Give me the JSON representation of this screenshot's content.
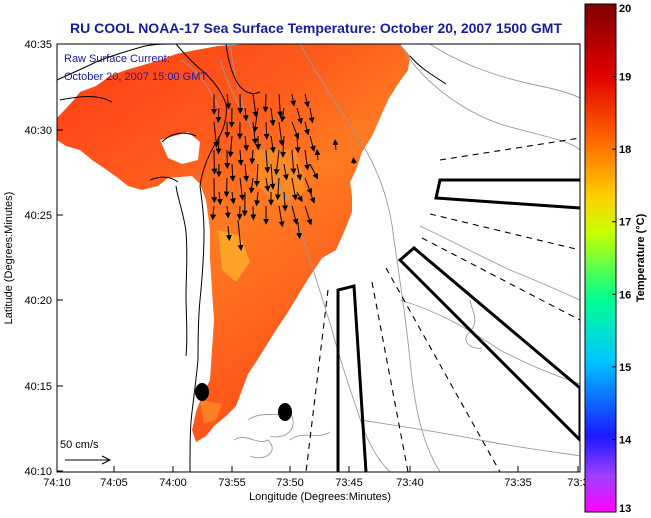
{
  "header": {
    "title": "RU COOL  NOAA-17  Sea Surface Temperature:  October 20, 2007 1500 GMT"
  },
  "annotation": {
    "line1": "Raw Surface Current:",
    "line2": "October 20, 2007 15:00 GMT"
  },
  "scale_bar": {
    "label": "50 cm/s"
  },
  "axes": {
    "xlabel": "Longitude (Degrees:Minutes)",
    "ylabel": "Latitude (Degrees:Minutes)",
    "xticks": [
      "74:10",
      "74:05",
      "74:00",
      "73:55",
      "73:50",
      "73:45",
      "73:40",
      "73:35",
      "73:3"
    ],
    "yticks": [
      "40:35",
      "40:30",
      "40:25",
      "40:20",
      "40:15",
      "40:10"
    ]
  },
  "colorbar": {
    "label": "Temperature (°C)",
    "min": 13,
    "max": 20,
    "ticks": [
      "20",
      "19",
      "18",
      "17",
      "16",
      "15",
      "14",
      "13"
    ],
    "colors": [
      "#ff00ff",
      "#1a1aff",
      "#00c8ff",
      "#00ff90",
      "#c8ff00",
      "#ffd000",
      "#ff6000",
      "#e00000",
      "#800000"
    ]
  },
  "map_colors": {
    "sst_warm": "#ff3c14",
    "sst_mid": "#ff6a1e",
    "sst_cool": "#ffa032",
    "coast": "#000000",
    "bathymetry": "#9a9a9a"
  }
}
